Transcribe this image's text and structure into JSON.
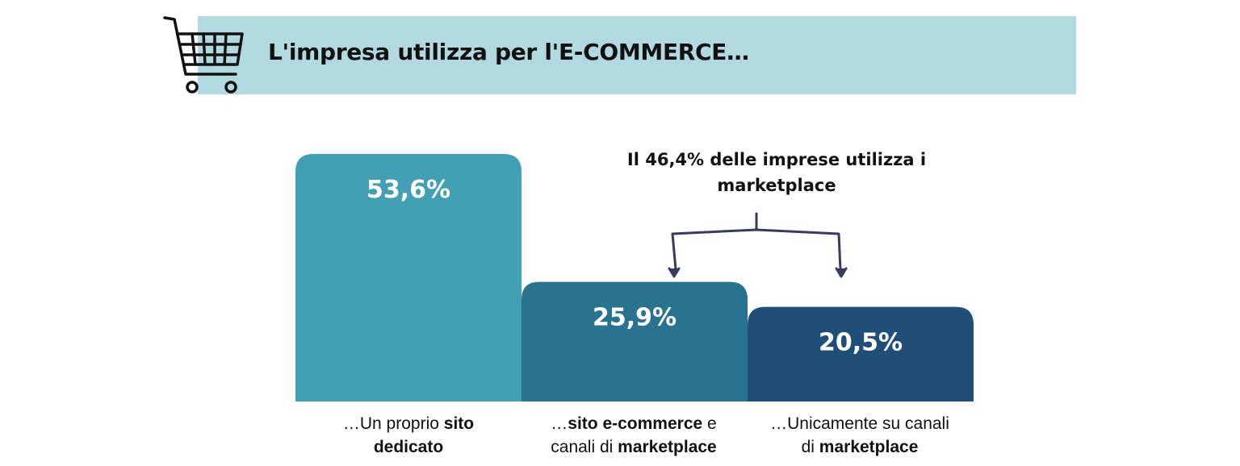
{
  "header": {
    "title": "L'impresa utilizza per l'E-COMMERCE…"
  },
  "annotation": {
    "line1": "Il 46,4% delle imprese utilizza i",
    "line2": "marketplace"
  },
  "chart_data": {
    "type": "bar",
    "categories": [
      "…Un proprio sito dedicato",
      "…sito e-commerce e canali di marketplace",
      "…Unicamente su canali di marketplace"
    ],
    "values": [
      53.6,
      25.9,
      20.5
    ],
    "data_labels": [
      "53,6%",
      "25,9%",
      "20,5%"
    ],
    "ylim": [
      0,
      53.6
    ],
    "grid": false,
    "bar_colors": [
      "#43a0b4",
      "#2a7390",
      "#1f4e79"
    ]
  },
  "labels": [
    {
      "pre1": "…Un proprio ",
      "bold1": "sito",
      "post1": "",
      "pre2": "",
      "bold2": "dedicato",
      "post2": ""
    },
    {
      "pre1": "…",
      "bold1": "sito e-commerce",
      "post1": " e",
      "pre2": "canali di ",
      "bold2": "marketplace",
      "post2": ""
    },
    {
      "pre1": "…Unicamente su canali",
      "bold1": "",
      "post1": "",
      "pre2": "di ",
      "bold2": "marketplace",
      "post2": ""
    }
  ],
  "colors": {
    "header_band": "#b2d8e0",
    "bracket": "#3a3a5c"
  },
  "icons": {
    "header": "shopping-cart-icon"
  }
}
